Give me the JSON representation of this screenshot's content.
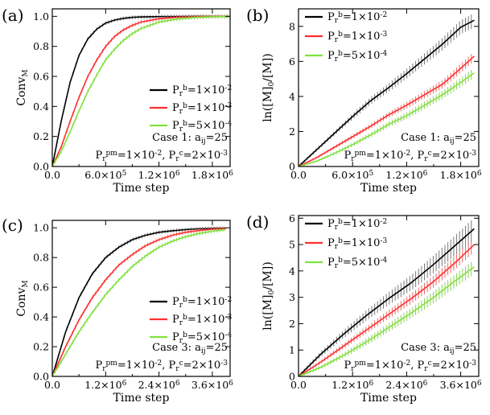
{
  "legend_labels": [
    "P_r^b=1×10^{-2}",
    "P_r^b=1×10^{-3}",
    "P_r^b=5×10^{-4}"
  ],
  "colors": {
    "black": "#000000",
    "red": "#ff2f2f",
    "green": "#7fe33a",
    "errbar_black": "#7a7a7a",
    "errbar_red": "#f06a6a",
    "errbar_green": "#8fd05a"
  },
  "chart_data": [
    {
      "type": "line",
      "panel_label": "(a)",
      "xlabel": "Time step",
      "ylabel": "Conv_M",
      "xlim": [
        0,
        2000000
      ],
      "ylim": [
        0,
        1.05
      ],
      "xticks": [
        0,
        600000,
        1200000,
        1800000
      ],
      "xtick_labels": [
        "0.0",
        "6.0×10^5",
        "1.2×10^6",
        "1.8×10^6"
      ],
      "yticks": [
        0,
        0.2,
        0.4,
        0.6,
        0.8,
        1.0
      ],
      "ytick_labels": [
        "0.0",
        "0.2",
        "0.4",
        "0.6",
        "0.8",
        "1.0"
      ],
      "legend_position": "right",
      "case_text": [
        "Case 1: a_{ij}=25",
        "P_r^{pm}=1×10^{-2}, P_r^c=2×10^{-3}"
      ],
      "series": [
        {
          "name": "P_r^b=1×10^{-2}",
          "color": "#000000",
          "x": [
            0,
            100000,
            200000,
            300000,
            400000,
            500000,
            600000,
            700000,
            800000,
            900000,
            1000000,
            1200000,
            1400000,
            1600000,
            1800000,
            2000000
          ],
          "y": [
            0,
            0.3,
            0.56,
            0.74,
            0.85,
            0.915,
            0.955,
            0.975,
            0.987,
            0.993,
            0.996,
            0.998,
            0.999,
            1.0,
            1.0,
            1.0
          ]
        },
        {
          "name": "P_r^b=1×10^{-3}",
          "color": "#ff2f2f",
          "x": [
            0,
            100000,
            200000,
            300000,
            400000,
            500000,
            600000,
            700000,
            800000,
            900000,
            1000000,
            1200000,
            1400000,
            1600000,
            1800000,
            2000000
          ],
          "y": [
            0,
            0.13,
            0.3,
            0.46,
            0.6,
            0.71,
            0.8,
            0.865,
            0.91,
            0.94,
            0.962,
            0.984,
            0.993,
            0.997,
            0.999,
            1.0
          ]
        },
        {
          "name": "P_r^b=5×10^{-4}",
          "color": "#7fe33a",
          "x": [
            0,
            100000,
            200000,
            300000,
            400000,
            500000,
            600000,
            700000,
            800000,
            900000,
            1000000,
            1200000,
            1400000,
            1600000,
            1800000,
            2000000
          ],
          "y": [
            0,
            0.1,
            0.23,
            0.37,
            0.5,
            0.61,
            0.71,
            0.78,
            0.84,
            0.885,
            0.92,
            0.962,
            0.982,
            0.992,
            0.997,
            0.999
          ]
        }
      ]
    },
    {
      "type": "line",
      "panel_label": "(b)",
      "xlabel": "Time step",
      "ylabel": "ln([M]_0/[M])",
      "xlim": [
        0,
        2000000
      ],
      "ylim": [
        0,
        9
      ],
      "xticks": [
        0,
        600000,
        1200000,
        1800000
      ],
      "xtick_labels": [
        "0.0",
        "6.0×10^5",
        "1.2×10^6",
        "1.8×10^6"
      ],
      "yticks": [
        0,
        2,
        4,
        6,
        8
      ],
      "ytick_labels": [
        "0",
        "2",
        "4",
        "6",
        "8"
      ],
      "legend_position": "top-left",
      "case_text": [
        "Case 1: a_{ij}=25",
        "P_r^{pm}=1×10^{-2}, P_r^c=2×10^{-3}"
      ],
      "series": [
        {
          "name": "P_r^b=1×10^{-2}",
          "color": "#000000",
          "x": [
            0,
            200000,
            400000,
            600000,
            800000,
            1000000,
            1200000,
            1400000,
            1600000,
            1800000,
            1950000
          ],
          "y": [
            0,
            0.95,
            1.9,
            2.85,
            3.75,
            4.5,
            5.3,
            6.15,
            7.0,
            7.95,
            8.35
          ]
        },
        {
          "name": "P_r^b=1×10^{-3}",
          "color": "#ff2f2f",
          "x": [
            0,
            200000,
            400000,
            600000,
            800000,
            1000000,
            1200000,
            1400000,
            1600000,
            1800000,
            1950000
          ],
          "y": [
            0,
            0.5,
            1.1,
            1.7,
            2.3,
            2.95,
            3.5,
            4.1,
            4.7,
            5.6,
            6.3
          ]
        },
        {
          "name": "P_r^b=5×10^{-4}",
          "color": "#7fe33a",
          "x": [
            0,
            200000,
            400000,
            600000,
            800000,
            1000000,
            1200000,
            1400000,
            1600000,
            1800000,
            1950000
          ],
          "y": [
            0,
            0.3,
            0.75,
            1.25,
            1.8,
            2.4,
            2.9,
            3.5,
            4.1,
            4.8,
            5.35
          ]
        }
      ]
    },
    {
      "type": "line",
      "panel_label": "(c)",
      "xlabel": "Time step",
      "ylabel": "Conv_M",
      "xlim": [
        0,
        4000000
      ],
      "ylim": [
        0,
        1.05
      ],
      "xticks": [
        0,
        1200000,
        2400000,
        3600000
      ],
      "xtick_labels": [
        "0.0",
        "1.2×10^6",
        "2.4×10^6",
        "3.6×10^6"
      ],
      "yticks": [
        0,
        0.2,
        0.4,
        0.6,
        0.8,
        1.0
      ],
      "ytick_labels": [
        "0.0",
        "0.2",
        "0.4",
        "0.6",
        "0.8",
        "1.0"
      ],
      "legend_position": "right",
      "case_text": [
        "Case 3: a_{ij}=25",
        "P_r^{pm}=1×10^{-2}, P_r^c=2×10^{-3}"
      ],
      "series": [
        {
          "name": "P_r^b=1×10^{-2}",
          "color": "#000000",
          "x": [
            0,
            300000,
            600000,
            900000,
            1200000,
            1500000,
            1800000,
            2100000,
            2400000,
            2700000,
            3000000,
            3300000,
            3600000,
            3900000
          ],
          "y": [
            0,
            0.3,
            0.53,
            0.69,
            0.8,
            0.87,
            0.92,
            0.95,
            0.97,
            0.98,
            0.988,
            0.993,
            0.996,
            0.998
          ]
        },
        {
          "name": "P_r^b=1×10^{-3}",
          "color": "#ff2f2f",
          "x": [
            0,
            300000,
            600000,
            900000,
            1200000,
            1500000,
            1800000,
            2100000,
            2400000,
            2700000,
            3000000,
            3300000,
            3600000,
            3900000
          ],
          "y": [
            0,
            0.2,
            0.38,
            0.53,
            0.65,
            0.75,
            0.82,
            0.88,
            0.92,
            0.95,
            0.97,
            0.982,
            0.99,
            0.995
          ]
        },
        {
          "name": "P_r^b=5×10^{-4}",
          "color": "#7fe33a",
          "x": [
            0,
            300000,
            600000,
            900000,
            1200000,
            1500000,
            1800000,
            2100000,
            2400000,
            2700000,
            3000000,
            3300000,
            3600000,
            3900000
          ],
          "y": [
            0,
            0.15,
            0.3,
            0.43,
            0.55,
            0.65,
            0.74,
            0.81,
            0.87,
            0.91,
            0.94,
            0.962,
            0.977,
            0.988
          ]
        }
      ]
    },
    {
      "type": "line",
      "panel_label": "(d)",
      "xlabel": "Time step",
      "ylabel": "ln([M]_0/[M])",
      "xlim": [
        0,
        4000000
      ],
      "ylim": [
        0,
        6.1
      ],
      "xticks": [
        0,
        1200000,
        2400000,
        3600000
      ],
      "xtick_labels": [
        "0.0",
        "1.2×10^6",
        "2.4×10^6",
        "3.6×10^6"
      ],
      "yticks": [
        0,
        1,
        2,
        3,
        4,
        5,
        6
      ],
      "ytick_labels": [
        "0",
        "1",
        "2",
        "3",
        "4",
        "5",
        "6"
      ],
      "legend_position": "top-left",
      "case_text": [
        "Case 3: a_{ij}=25",
        "P_r^{pm}=1×10^{-2}, P_r^c=2×10^{-3}"
      ],
      "series": [
        {
          "name": "P_r^b=1×10^{-2}",
          "color": "#000000",
          "x": [
            0,
            500000,
            1000000,
            1500000,
            2000000,
            2500000,
            3000000,
            3500000,
            3900000
          ],
          "y": [
            0,
            0.85,
            1.6,
            2.3,
            2.95,
            3.55,
            4.25,
            5.0,
            5.6
          ]
        },
        {
          "name": "P_r^b=1×10^{-3}",
          "color": "#ff2f2f",
          "x": [
            0,
            500000,
            1000000,
            1500000,
            2000000,
            2500000,
            3000000,
            3500000,
            3900000
          ],
          "y": [
            0,
            0.55,
            1.15,
            1.75,
            2.35,
            2.95,
            3.6,
            4.35,
            5.0
          ]
        },
        {
          "name": "P_r^b=5×10^{-4}",
          "color": "#7fe33a",
          "x": [
            0,
            500000,
            1000000,
            1500000,
            2000000,
            2500000,
            3000000,
            3500000,
            3900000
          ],
          "y": [
            0,
            0.35,
            0.8,
            1.3,
            1.85,
            2.4,
            3.0,
            3.65,
            4.15
          ]
        }
      ]
    }
  ]
}
